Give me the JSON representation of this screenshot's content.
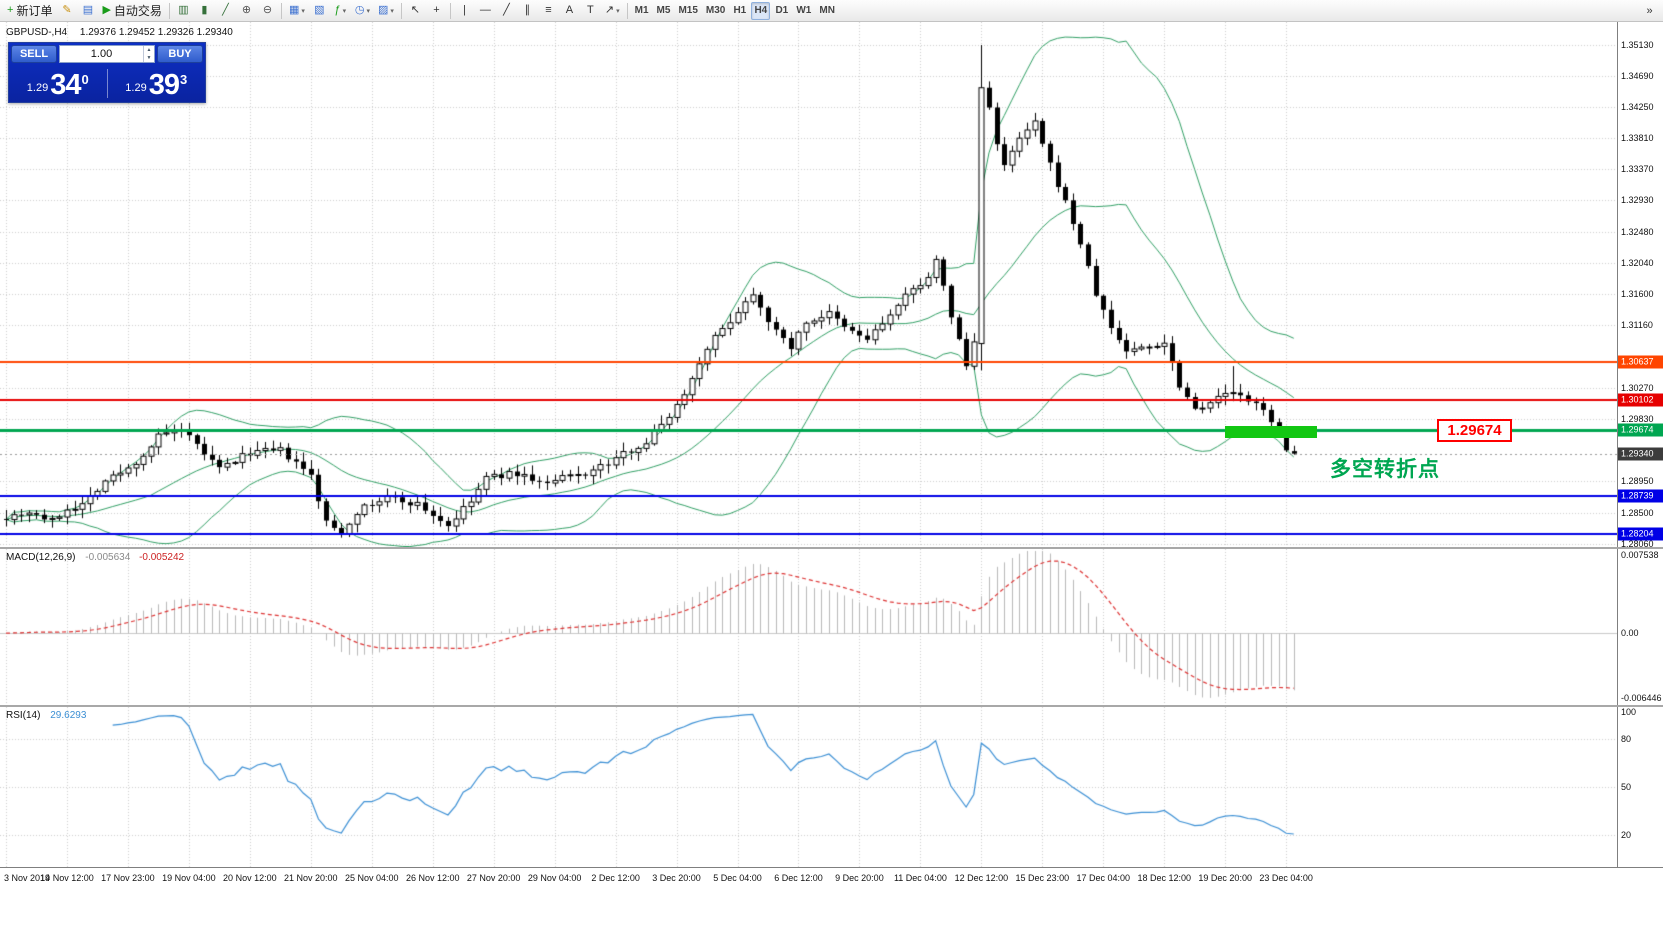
{
  "toolbar": {
    "overflow_icon": "»",
    "groups": [
      {
        "items": [
          {
            "name": "new-order-button",
            "glyph": "+",
            "color": "#1a9c1a",
            "label": "新订单"
          },
          {
            "name": "metaeditor-icon",
            "glyph": "✎",
            "color": "#c89010"
          },
          {
            "name": "market-watch-icon",
            "glyph": "▤",
            "color": "#3a6fd0"
          },
          {
            "name": "autotrading-button",
            "glyph": "▶",
            "color": "#1a9c1a",
            "label": "自动交易"
          }
        ]
      },
      {
        "items": [
          {
            "name": "bar-chart-icon",
            "glyph": "▥",
            "color": "#35703a"
          },
          {
            "name": "candlestick-chart-icon",
            "glyph": "▮",
            "color": "#35703a"
          },
          {
            "name": "line-chart-icon",
            "glyph": "╱",
            "color": "#35703a"
          },
          {
            "name": "zoom-in-icon",
            "glyph": "⊕",
            "color": "#555555"
          },
          {
            "name": "zoom-out-icon",
            "glyph": "⊖",
            "color": "#555555"
          }
        ]
      },
      {
        "items": [
          {
            "name": "tile-windows-icon",
            "glyph": "▦",
            "color": "#3a6fd0",
            "dropdown": true
          },
          {
            "name": "arrange-windows-icon",
            "glyph": "▧",
            "color": "#3a6fd0"
          },
          {
            "name": "indicators-icon",
            "glyph": "ƒ",
            "color": "#1a9c1a",
            "dropdown": true
          },
          {
            "name": "periods-icon",
            "glyph": "◷",
            "color": "#3a6fd0",
            "dropdown": true
          },
          {
            "name": "templates-icon",
            "glyph": "▨",
            "color": "#3a6fd0",
            "dropdown": true
          }
        ]
      },
      {
        "items": [
          {
            "name": "cursor-icon",
            "glyph": "↖",
            "color": "#333333"
          },
          {
            "name": "crosshair-icon",
            "glyph": "+",
            "color": "#333333"
          }
        ]
      },
      {
        "items": [
          {
            "name": "vertical-line-icon",
            "glyph": "|",
            "color": "#333333"
          },
          {
            "name": "horizontal-line-icon",
            "glyph": "—",
            "color": "#333333"
          },
          {
            "name": "trendline-icon",
            "glyph": "╱",
            "color": "#333333"
          },
          {
            "name": "channel-icon",
            "glyph": "∥",
            "color": "#333333"
          },
          {
            "name": "fibonacci-icon",
            "glyph": "≡",
            "color": "#333333"
          },
          {
            "name": "text-icon",
            "glyph": "A",
            "color": "#333333"
          },
          {
            "name": "label-icon",
            "glyph": "T",
            "color": "#333333"
          },
          {
            "name": "arrows-icon",
            "glyph": "↗",
            "color": "#333333",
            "dropdown": true
          }
        ]
      },
      {
        "items": [
          {
            "name": "timeframe-m1",
            "tf": true,
            "label": "M1"
          },
          {
            "name": "timeframe-m5",
            "tf": true,
            "label": "M5"
          },
          {
            "name": "timeframe-m15",
            "tf": true,
            "label": "M15"
          },
          {
            "name": "timeframe-m30",
            "tf": true,
            "label": "M30"
          },
          {
            "name": "timeframe-h1",
            "tf": true,
            "label": "H1"
          },
          {
            "name": "timeframe-h4",
            "tf": true,
            "label": "H4",
            "active": true
          },
          {
            "name": "timeframe-d1",
            "tf": true,
            "label": "D1"
          },
          {
            "name": "timeframe-w1",
            "tf": true,
            "label": "W1"
          },
          {
            "name": "timeframe-mn",
            "tf": true,
            "label": "MN"
          }
        ]
      }
    ]
  },
  "chart": {
    "symbol_label": "GBPUSD-,H4",
    "ohlc_values": "1.29376 1.29452 1.29326 1.29340",
    "trade_panel": {
      "sell_label": "SELL",
      "buy_label": "BUY",
      "volume": "1.00",
      "sell_price_small": "1.29",
      "sell_price_big": "34",
      "sell_price_sup": "0",
      "buy_price_small": "1.29",
      "buy_price_big": "39",
      "buy_price_sup": "3"
    },
    "price_axis_labels": [
      "1.35130",
      "1.34690",
      "1.34250",
      "1.33810",
      "1.33370",
      "1.32930",
      "1.32480",
      "1.32040",
      "1.31600",
      "1.31160",
      "1.30270",
      "1.29830",
      "1.28950",
      "1.28500",
      "1.28060"
    ],
    "hlines": [
      {
        "price": 1.30637,
        "label": "1.30637",
        "color": "#ff4500",
        "width": 2
      },
      {
        "price": 1.30102,
        "label": "1.30102",
        "color": "#e60000",
        "width": 2
      },
      {
        "price": 1.29674,
        "label": "1.29674",
        "color": "#00a651",
        "width": 3
      },
      {
        "price": 1.28739,
        "label": "1.28739",
        "color": "#0000e6",
        "width": 2
      },
      {
        "price": 1.28204,
        "label": "1.28204",
        "color": "#0000e6",
        "width": 2
      }
    ],
    "bid_line": {
      "price": 1.2934,
      "label": "1.29340",
      "color": "#3c3c3c"
    },
    "annotations": {
      "highlight_rect": {
        "color": "#12c712"
      },
      "price_callout": {
        "text": "1.29674",
        "color": "#ff0000"
      },
      "note_text": {
        "text": "多空转折点",
        "color": "#00a651"
      }
    },
    "time_axis_labels": [
      "3 Nov 2019",
      "14 Nov 12:00",
      "17 Nov 23:00",
      "19 Nov 04:00",
      "20 Nov 12:00",
      "21 Nov 20:00",
      "25 Nov 04:00",
      "26 Nov 12:00",
      "27 Nov 20:00",
      "29 Nov 04:00",
      "2 Dec 12:00",
      "3 Dec 20:00",
      "5 Dec 04:00",
      "6 Dec 12:00",
      "9 Dec 20:00",
      "11 Dec 04:00",
      "12 Dec 12:00",
      "15 Dec 23:00",
      "17 Dec 04:00",
      "18 Dec 12:00",
      "19 Dec 20:00",
      "23 Dec 04:00"
    ]
  },
  "macd": {
    "name": "MACD(12,26,9)",
    "value_main": "-0.005634",
    "value_signal": "-0.005242",
    "axis_top": "0.007538",
    "axis_zero": "0.00",
    "axis_bottom": "-0.006446",
    "colors": {
      "histogram": "#b9b9b9",
      "signal": "#dd3333"
    }
  },
  "rsi": {
    "name": "RSI(14)",
    "value": "29.6293",
    "axis_labels": [
      "100",
      "80",
      "50",
      "20"
    ],
    "levels": [
      80,
      50,
      20
    ],
    "color": "#3b8fd4"
  },
  "chart_data": {
    "type": "candlestick",
    "symbol": "GBPUSD",
    "timeframe": "H4",
    "ohlc_current": {
      "open": 1.29376,
      "high": 1.29452,
      "low": 1.29326,
      "close": 1.2934
    },
    "bid": 1.2934,
    "ask": 1.29393,
    "n_candles": 170,
    "y_axis_visible_range": [
      1.2806,
      1.3513
    ],
    "indicators": {
      "bollinger_period": 20,
      "bollinger_deviation": 2,
      "macd": [
        12,
        26,
        9
      ],
      "rsi_period": 14
    },
    "price_keypoints": [
      [
        0,
        1.2845
      ],
      [
        3,
        1.2852
      ],
      [
        6,
        1.2838
      ],
      [
        8,
        1.2856
      ],
      [
        10,
        1.2862
      ],
      [
        13,
        1.2896
      ],
      [
        16,
        1.2912
      ],
      [
        18,
        1.2932
      ],
      [
        20,
        1.2958
      ],
      [
        22,
        1.2966
      ],
      [
        24,
        1.2956
      ],
      [
        28,
        1.2912
      ],
      [
        32,
        1.2936
      ],
      [
        36,
        1.2938
      ],
      [
        40,
        1.2902
      ],
      [
        42,
        1.2836
      ],
      [
        44,
        1.2822
      ],
      [
        46,
        1.2852
      ],
      [
        50,
        1.2872
      ],
      [
        54,
        1.2862
      ],
      [
        58,
        1.2832
      ],
      [
        61,
        1.2866
      ],
      [
        63,
        1.29
      ],
      [
        67,
        1.2906
      ],
      [
        71,
        1.289
      ],
      [
        73,
        1.29
      ],
      [
        76,
        1.2906
      ],
      [
        79,
        1.292
      ],
      [
        82,
        1.294
      ],
      [
        84,
        1.295
      ],
      [
        86,
        1.2976
      ],
      [
        88,
        1.3002
      ],
      [
        90,
        1.304
      ],
      [
        92,
        1.3086
      ],
      [
        94,
        1.311
      ],
      [
        96,
        1.3136
      ],
      [
        98,
        1.3162
      ],
      [
        101,
        1.3106
      ],
      [
        103,
        1.3086
      ],
      [
        105,
        1.312
      ],
      [
        108,
        1.3132
      ],
      [
        110,
        1.3112
      ],
      [
        113,
        1.3096
      ],
      [
        116,
        1.313
      ],
      [
        118,
        1.3156
      ],
      [
        121,
        1.3186
      ],
      [
        122,
        1.3206
      ],
      [
        124,
        1.313
      ],
      [
        126,
        1.3058
      ],
      [
        127,
        1.3092
      ],
      [
        128,
        1.3452
      ],
      [
        129,
        1.3428
      ],
      [
        130,
        1.3372
      ],
      [
        131,
        1.334
      ],
      [
        133,
        1.338
      ],
      [
        135,
        1.3402
      ],
      [
        137,
        1.3342
      ],
      [
        139,
        1.329
      ],
      [
        141,
        1.3232
      ],
      [
        143,
        1.316
      ],
      [
        145,
        1.3112
      ],
      [
        147,
        1.308
      ],
      [
        150,
        1.3086
      ],
      [
        152,
        1.3092
      ],
      [
        154,
        1.3032
      ],
      [
        156,
        1.2998
      ],
      [
        158,
        1.3008
      ],
      [
        161,
        1.3022
      ],
      [
        163,
        1.3006
      ],
      [
        165,
        1.3
      ],
      [
        167,
        1.2962
      ],
      [
        168,
        1.2938
      ],
      [
        169,
        1.2934
      ]
    ],
    "specials": [
      {
        "i": 44,
        "low": 1.2815
      },
      {
        "i": 122,
        "high": 1.3215
      },
      {
        "i": 128,
        "open": 1.309,
        "low": 1.3052,
        "high": 1.3513
      },
      {
        "i": 161,
        "high": 1.3058
      },
      {
        "i": 169,
        "open": 1.29376,
        "high": 1.29452,
        "low": 1.29326,
        "close": 1.2934
      }
    ]
  }
}
